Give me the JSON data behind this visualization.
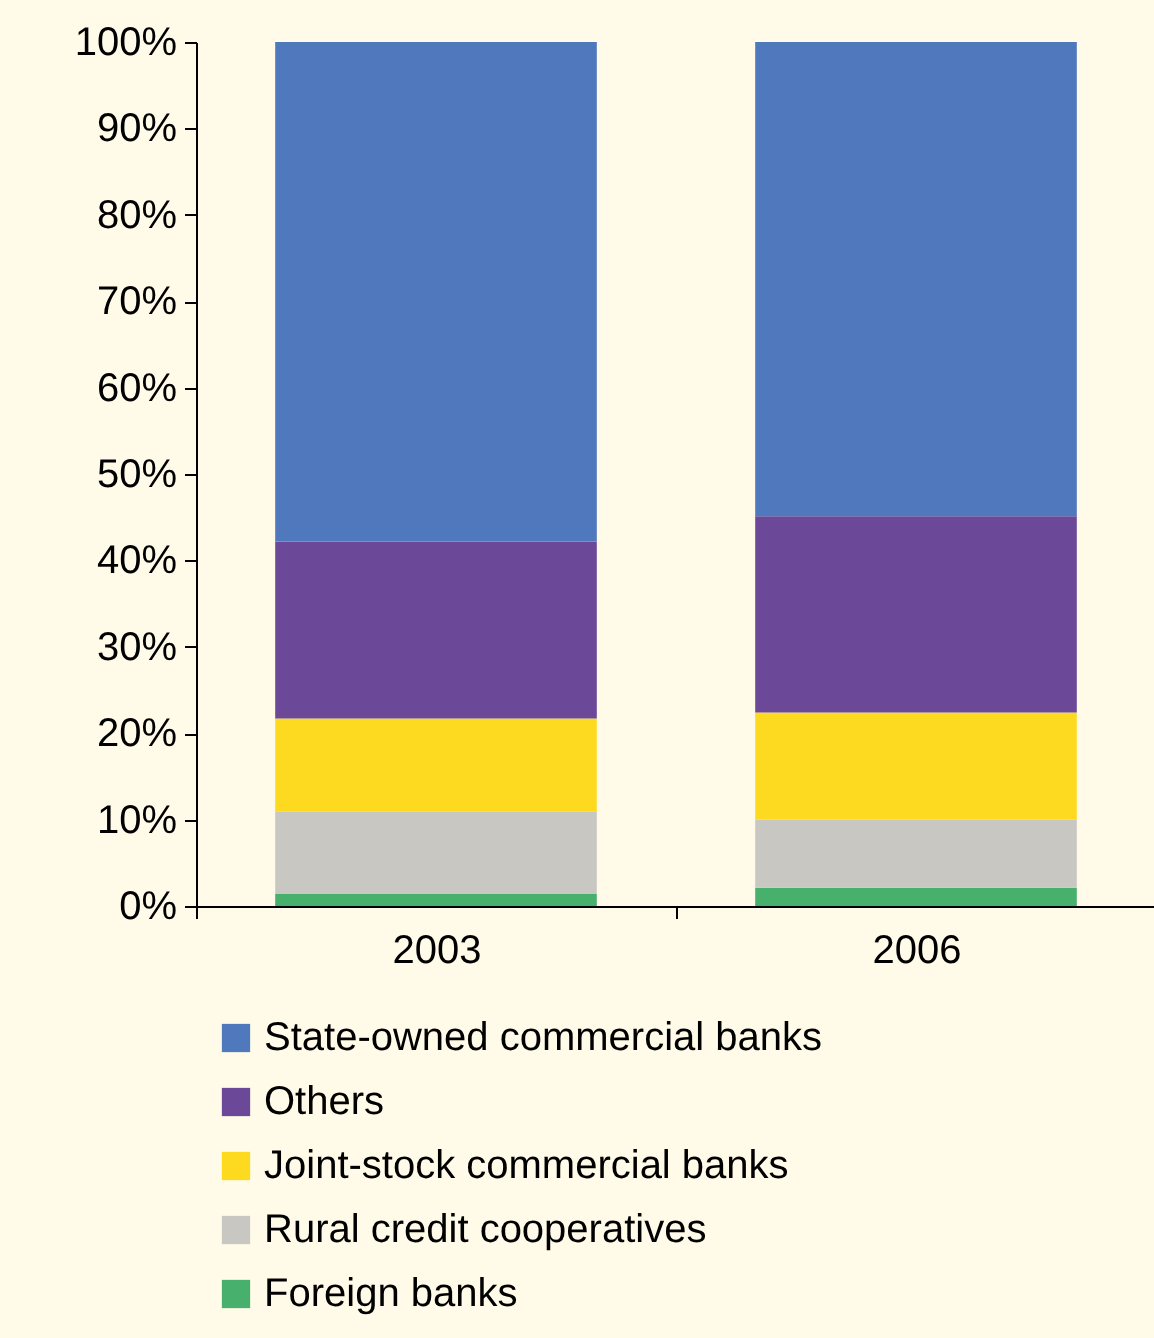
{
  "chart_data": {
    "type": "bar",
    "stacked": true,
    "categories": [
      "2003",
      "2006"
    ],
    "series": [
      {
        "name": "Foreign banks",
        "color": "#46b06c",
        "values": [
          1.4,
          2.1
        ]
      },
      {
        "name": "Rural credit cooperatives",
        "color": "#c8c7c2",
        "values": [
          9.5,
          7.9
        ]
      },
      {
        "name": "Joint-stock commercial banks",
        "color": "#fdd920",
        "values": [
          10.8,
          12.4
        ]
      },
      {
        "name": "Others",
        "color": "#6b4898",
        "values": [
          20.5,
          22.7
        ]
      },
      {
        "name": "State-owned commercial banks",
        "color": "#4f78bd",
        "values": [
          57.8,
          54.9
        ]
      }
    ],
    "ylim": [
      0,
      100
    ],
    "yticks": [
      {
        "value": 0,
        "label": "0%"
      },
      {
        "value": 10,
        "label": "10%"
      },
      {
        "value": 20,
        "label": "20%"
      },
      {
        "value": 30,
        "label": "30%"
      },
      {
        "value": 40,
        "label": "40%"
      },
      {
        "value": 50,
        "label": "50%"
      },
      {
        "value": 60,
        "label": "60%"
      },
      {
        "value": 70,
        "label": "70%"
      },
      {
        "value": 80,
        "label": "80%"
      },
      {
        "value": 90,
        "label": "90%"
      },
      {
        "value": 100,
        "label": "100%"
      }
    ],
    "grid": false,
    "legend": "bottom"
  }
}
